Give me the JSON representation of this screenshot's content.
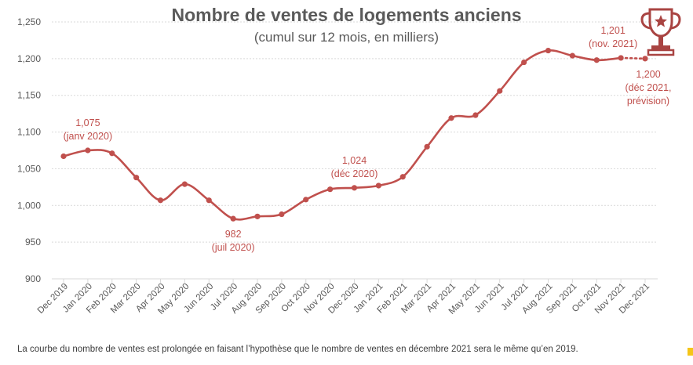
{
  "chart_data": {
    "type": "line",
    "title": "Nombre de ventes de logements anciens",
    "subtitle": "(cumul sur 12 mois, en milliers)",
    "categories": [
      "Dec 2019",
      "Jan 2020",
      "Feb 2020",
      "Mar 2020",
      "Apr 2020",
      "May 2020",
      "Jun 2020",
      "Jul 2020",
      "Aug 2020",
      "Sep 2020",
      "Oct 2020",
      "Nov 2020",
      "Dec 2020",
      "Jan 2021",
      "Feb 2021",
      "Mar 2021",
      "Apr 2021",
      "May 2021",
      "Jun 2021",
      "Jul 2021",
      "Aug 2021",
      "Sep 2021",
      "Oct 2021",
      "Nov 2021",
      "Dec 2021"
    ],
    "series": [
      {
        "values": [
          1067,
          1075,
          1071,
          1038,
          1007,
          1029,
          1007,
          982,
          985,
          988,
          1008,
          1022,
          1024,
          1027,
          1039,
          1080,
          1119,
          1123,
          1156,
          1195,
          1211,
          1204,
          1198,
          1201,
          null
        ],
        "color": "#c0504d"
      }
    ],
    "forecast": {
      "from_index": 23,
      "to_index": 24,
      "from_value": 1201,
      "to_value": 1200,
      "style": "dotted"
    },
    "ylim": [
      900,
      1250
    ],
    "yticks": [
      900,
      950,
      1000,
      1050,
      1100,
      1150,
      1200,
      1250
    ],
    "ytick_labels": [
      "900",
      "950",
      "1,000",
      "1,050",
      "1,100",
      "1,150",
      "1,200",
      "1,250"
    ],
    "grid": true,
    "legend": "none",
    "annotations": [
      {
        "index": 1,
        "lines": [
          "1,075",
          "(janv 2020)"
        ],
        "position": "above"
      },
      {
        "index": 7,
        "lines": [
          "982",
          "(juil 2020)"
        ],
        "position": "below"
      },
      {
        "index": 12,
        "lines": [
          "1,024",
          "(déc 2020)"
        ],
        "position": "above"
      },
      {
        "index": 23,
        "lines": [
          "1,201",
          "(nov. 2021)"
        ],
        "position": "above"
      },
      {
        "index": 24,
        "lines": [
          "1,200",
          "(déc 2021,",
          "prévision)"
        ],
        "position": "below"
      }
    ]
  },
  "footnote": "La courbe du nombre de ventes est prolongée en faisant l’hypothèse que le nombre de ventes en décembre 2021 sera le même qu’en 2019.",
  "icons": {
    "trophy": "trophy-icon"
  },
  "colors": {
    "line": "#c0504d",
    "annotation": "#c0504d",
    "grid": "#d9d9d9",
    "axis_text": "#595959",
    "trophy": "#a94442",
    "accent": "#f5c518"
  }
}
